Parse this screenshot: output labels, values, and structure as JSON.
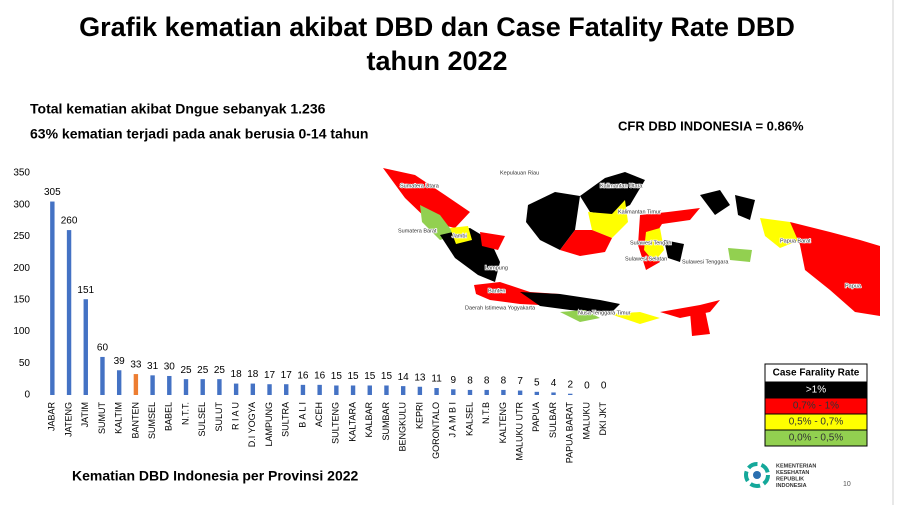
{
  "title": [
    "Grafik kematian akibat DBD dan Case Fatality Rate DBD",
    "tahun 2022"
  ],
  "notes": [
    "Total kematian akibat Dngue sebanyak 1.236",
    "63% kematian terjadi pada anak berusia 0-14 tahun"
  ],
  "cfr": "CFR DBD INDONESIA = 0.86%",
  "chart_data": {
    "type": "bar",
    "caption": "Kematian DBD Indonesia per Provinsi 2022",
    "categories": [
      "JABAR",
      "JATENG",
      "JATIM",
      "SUMUT",
      "KALTIM",
      "BANTEN",
      "SUMSEL",
      "BABEL",
      "N.T.T.",
      "SULSEL",
      "SULUT",
      "R I A U",
      "D.I YOGYA",
      "LAMPUNG",
      "SULTRA",
      "B A L I",
      "ACEH",
      "SULTENG",
      "KALTARA",
      "KALBAR",
      "SUMBAR",
      "BENGKULU",
      "KEPRI",
      "GORONTALO",
      "J A M B I",
      "KALSEL",
      "N.T.B",
      "KALTENG",
      "MALUKU UTR",
      "PAPUA",
      "SULBAR",
      "PAPUA BARAT",
      "MALUKU",
      "DKI JKT"
    ],
    "values": [
      305,
      260,
      151,
      60,
      39,
      33,
      31,
      30,
      25,
      25,
      25,
      18,
      18,
      17,
      17,
      16,
      16,
      15,
      15,
      15,
      15,
      14,
      13,
      11,
      9,
      8,
      8,
      8,
      7,
      5,
      4,
      2,
      0,
      0
    ],
    "color": "#4472c4",
    "highlight": {
      "index": 5,
      "color": "#ed7d31"
    },
    "ylim": [
      0,
      350
    ],
    "yticks": [
      0,
      50,
      100,
      150,
      200,
      250,
      300,
      350
    ],
    "grid": false
  },
  "map": {
    "legend": {
      "title": "Case Farality Rate",
      "items": [
        {
          "label": ">1%",
          "color": "#000000"
        },
        {
          "label": "0,7% - 1%",
          "color": "#ff0000"
        },
        {
          "label": "0,5% - 0,7%",
          "color": "#ffff00"
        },
        {
          "label": "0,0% - 0,5%",
          "color": "#92d050"
        }
      ]
    },
    "labels": [
      "Sumatera Utara",
      "Kepulauan Riau",
      "Kalimantan Utara",
      "Kalimantan Timur",
      "Sumatera Barat",
      "Sulawesi Tengah",
      "Jambi",
      "Papua Barat",
      "Sulawesi Selatan",
      "Sulawesi Tenggara",
      "Lampung",
      "Banten",
      "Daerah Istimewa Yogyakarta",
      "Nusa Tenggara Timur",
      "Papua"
    ]
  },
  "logo": [
    "KEMENTERIAN",
    "KESEHATAN",
    "REPUBLIK",
    "INDONESIA"
  ],
  "page_number": "10"
}
